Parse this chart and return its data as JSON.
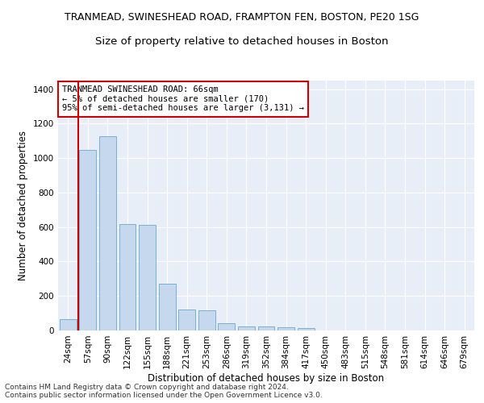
{
  "title": "TRANMEAD, SWINESHEAD ROAD, FRAMPTON FEN, BOSTON, PE20 1SG",
  "subtitle": "Size of property relative to detached houses in Boston",
  "xlabel": "Distribution of detached houses by size in Boston",
  "ylabel": "Number of detached properties",
  "categories": [
    "24sqm",
    "57sqm",
    "90sqm",
    "122sqm",
    "155sqm",
    "188sqm",
    "221sqm",
    "253sqm",
    "286sqm",
    "319sqm",
    "352sqm",
    "384sqm",
    "417sqm",
    "450sqm",
    "483sqm",
    "515sqm",
    "548sqm",
    "581sqm",
    "614sqm",
    "646sqm",
    "679sqm"
  ],
  "values": [
    65,
    1048,
    1125,
    618,
    615,
    270,
    120,
    115,
    40,
    25,
    25,
    20,
    15,
    0,
    0,
    0,
    0,
    0,
    0,
    0,
    0
  ],
  "bar_color": "#c5d8ee",
  "bar_edge_color": "#7aafd4",
  "vline_color": "#cc0000",
  "vline_x": 0.5,
  "ylim": [
    0,
    1450
  ],
  "yticks": [
    0,
    200,
    400,
    600,
    800,
    1000,
    1200,
    1400
  ],
  "annotation_text": "TRANMEAD SWINESHEAD ROAD: 66sqm\n← 5% of detached houses are smaller (170)\n95% of semi-detached houses are larger (3,131) →",
  "annotation_box_color": "#ffffff",
  "annotation_box_edge_color": "#cc0000",
  "footer_text": "Contains HM Land Registry data © Crown copyright and database right 2024.\nContains public sector information licensed under the Open Government Licence v3.0.",
  "background_color": "#e8eef8",
  "title_fontsize": 9,
  "subtitle_fontsize": 9.5,
  "axis_label_fontsize": 8.5,
  "tick_fontsize": 7.5,
  "annotation_fontsize": 7.5,
  "footer_fontsize": 6.5
}
